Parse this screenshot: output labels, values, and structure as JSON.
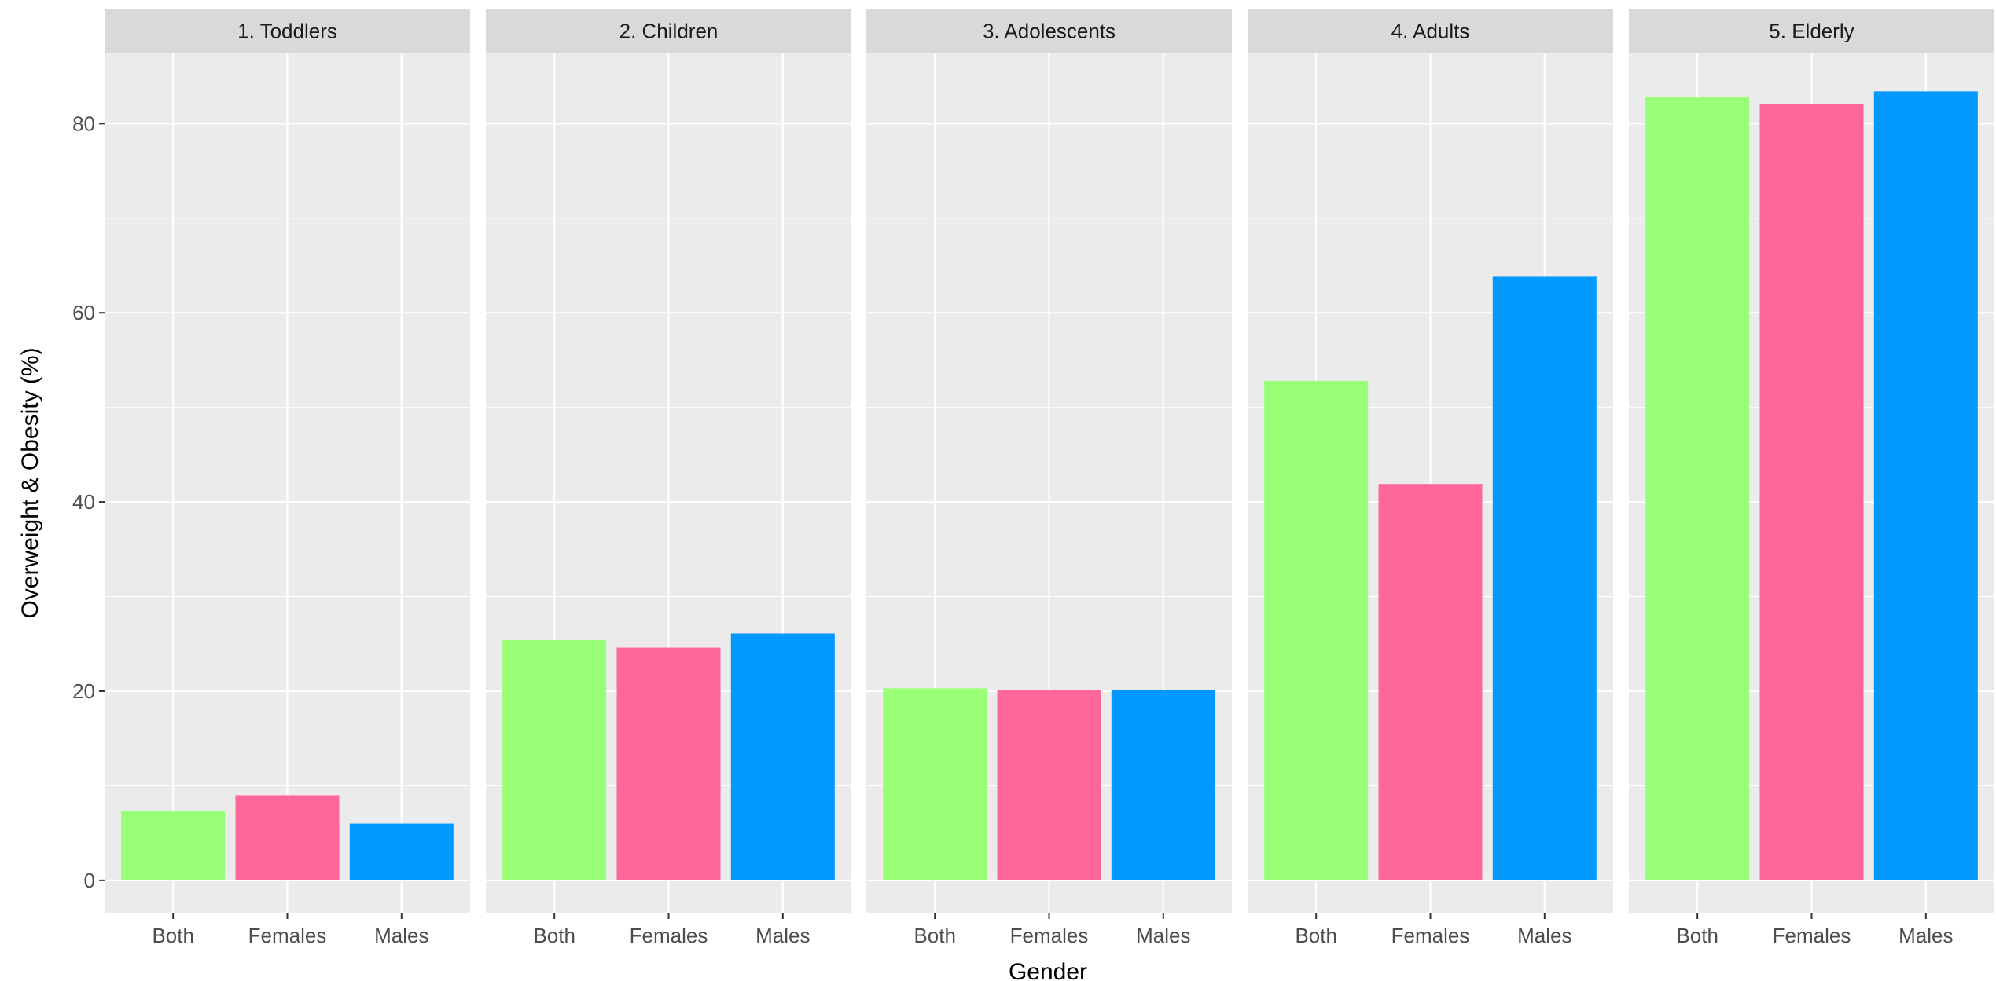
{
  "chart_data": {
    "type": "bar",
    "facets": [
      "1. Toddlers",
      "2. Children",
      "3. Adolescents",
      "4. Adults",
      "5. Elderly"
    ],
    "categories": [
      "Both",
      "Females",
      "Males"
    ],
    "colors": {
      "Both": "#99ff77",
      "Females": "#ff6699",
      "Males": "#0099ff"
    },
    "values": [
      [
        7.3,
        9.0,
        6.0
      ],
      [
        25.4,
        24.6,
        26.1
      ],
      [
        20.3,
        20.1,
        20.1
      ],
      [
        52.8,
        41.9,
        63.8
      ],
      [
        82.8,
        82.1,
        83.4
      ]
    ],
    "xlabel": "Gender",
    "ylabel": "Overweight & Obesity (%)",
    "ylim": [
      -3.5,
      87.5
    ],
    "yticks": [
      0,
      20,
      40,
      60,
      80
    ],
    "grid": true,
    "legend": "none"
  }
}
